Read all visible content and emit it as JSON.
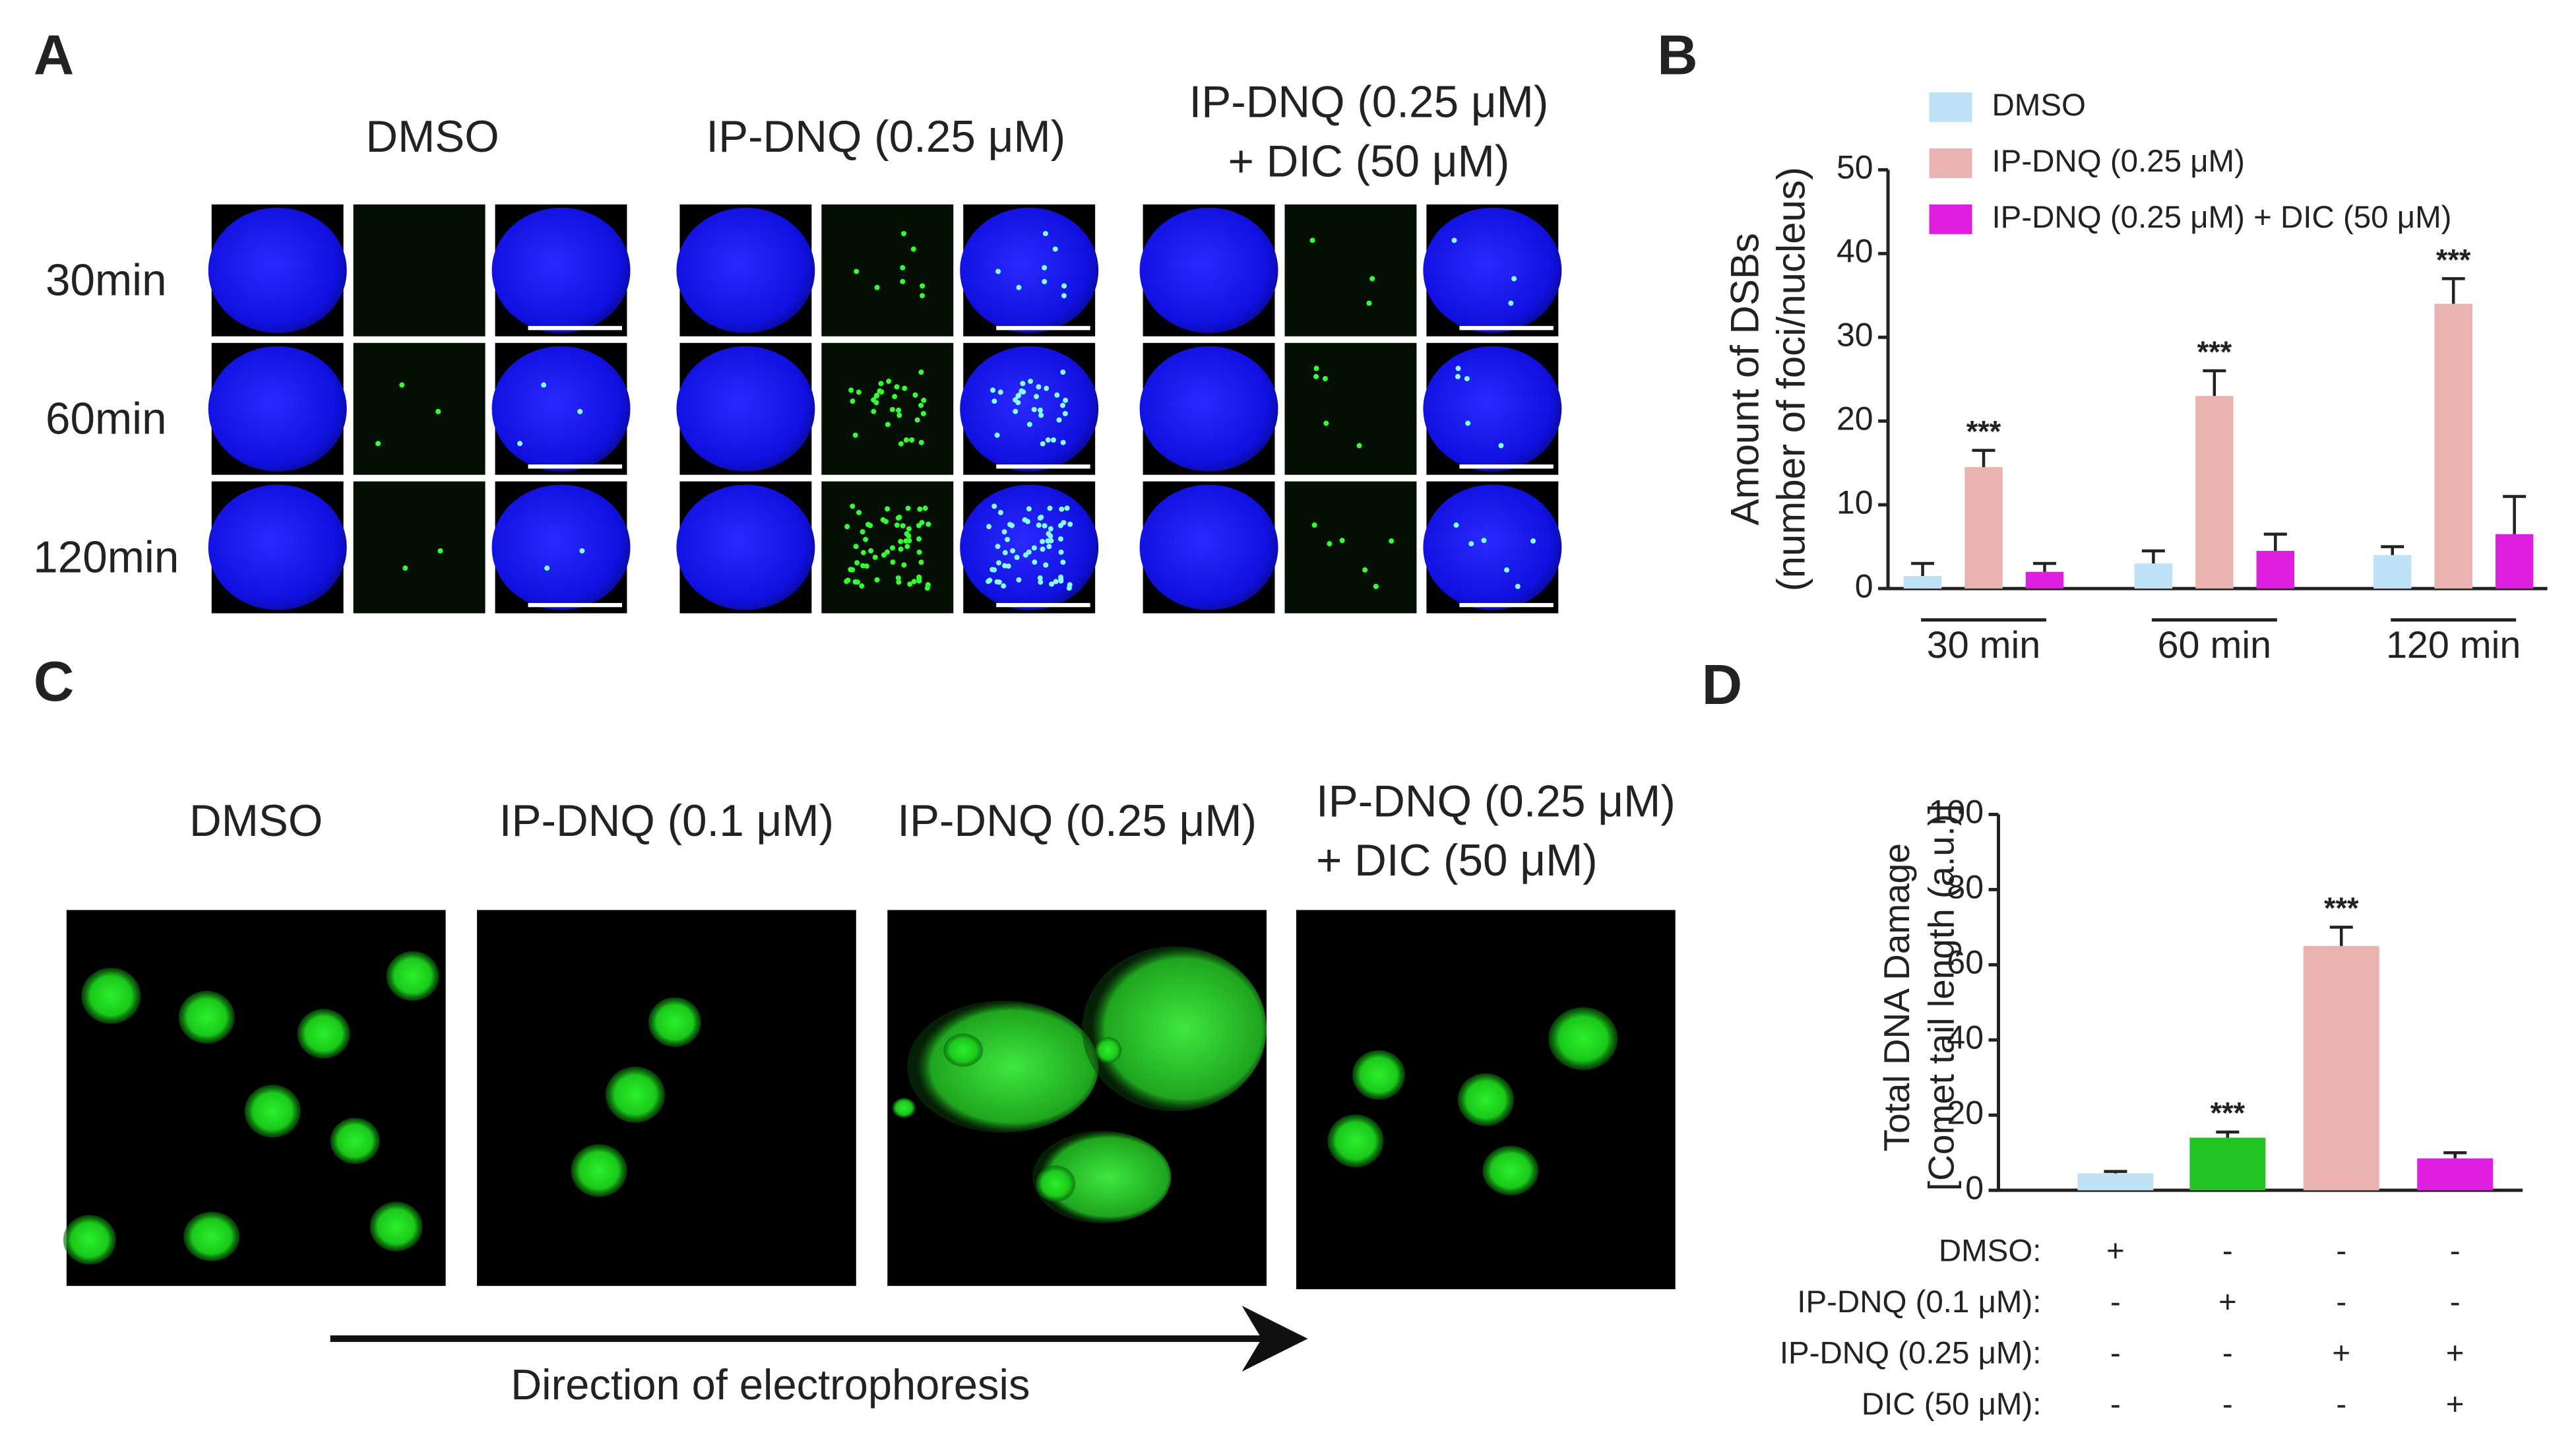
{
  "panel_labels": [
    "A",
    "B",
    "C",
    "D"
  ],
  "panel_a": {
    "column_titles": [
      [
        "DMSO"
      ],
      [
        "IP-DNQ (0.25 μM)"
      ],
      [
        "IP-DNQ (0.25 μM)",
        "+ DIC (50 μM)"
      ]
    ],
    "row_labels": [
      "30min",
      "60min",
      "120min"
    ]
  },
  "panel_c": {
    "column_titles": [
      [
        "DMSO"
      ],
      [
        "IP-DNQ (0.1 μM)"
      ],
      [
        "IP-DNQ (0.25 μM)"
      ],
      [
        "IP-DNQ (0.25 μM)",
        "+ DIC (50 μM)"
      ]
    ],
    "arrow_label": "Direction of electrophoresis"
  },
  "chart_data": [
    {
      "type": "bar",
      "ylabel": [
        "Amount of DSBs",
        "(number of  foci/nucleus)"
      ],
      "categories": [
        "30 min",
        "60 min",
        "120 min"
      ],
      "series": [
        {
          "name": "DMSO",
          "color": "#bfe1f6",
          "values": [
            1.5,
            3,
            4
          ],
          "errors": [
            1.5,
            1.5,
            1
          ]
        },
        {
          "name": "IP-DNQ (0.25 μM)",
          "color": "#e8b3b1",
          "values": [
            14.5,
            23,
            34
          ],
          "errors": [
            2,
            3,
            3
          ],
          "significance": [
            "***",
            "***",
            "***"
          ]
        },
        {
          "name": "IP-DNQ (0.25 μM) + DIC (50 μM)",
          "color": "#df1fdf",
          "values": [
            2,
            4.5,
            6.5
          ],
          "errors": [
            1,
            2,
            4.5
          ]
        }
      ],
      "ylim": [
        0,
        50
      ],
      "yticks": [
        0,
        10,
        20,
        30,
        40,
        50
      ],
      "legend": "top-left"
    },
    {
      "type": "bar",
      "ylabel": [
        "Total DNA Damage",
        "[Comet tail length (a.u.)]"
      ],
      "categories": [
        null,
        null,
        null,
        null
      ],
      "values": [
        4.5,
        14,
        65,
        8.5
      ],
      "errors": [
        0.5,
        1.5,
        5,
        1.5
      ],
      "colors": [
        "#bfe1f6",
        "#22c322",
        "#e8b3b1",
        "#df1fdf"
      ],
      "significance": [
        null,
        "***",
        "***",
        null
      ],
      "ylim": [
        0,
        100
      ],
      "yticks": [
        0,
        20,
        40,
        60,
        80,
        100
      ],
      "treatments": [
        {
          "label": "DMSO:",
          "signs": [
            "+",
            "-",
            "-",
            "-"
          ]
        },
        {
          "label": "IP-DNQ (0.1 μM):",
          "signs": [
            "-",
            "+",
            "-",
            "-"
          ]
        },
        {
          "label": "IP-DNQ (0.25 μM):",
          "signs": [
            "-",
            "-",
            "+",
            "+"
          ]
        },
        {
          "label": "DIC (50 μM):",
          "signs": [
            "-",
            "-",
            "-",
            "+"
          ]
        }
      ]
    }
  ]
}
